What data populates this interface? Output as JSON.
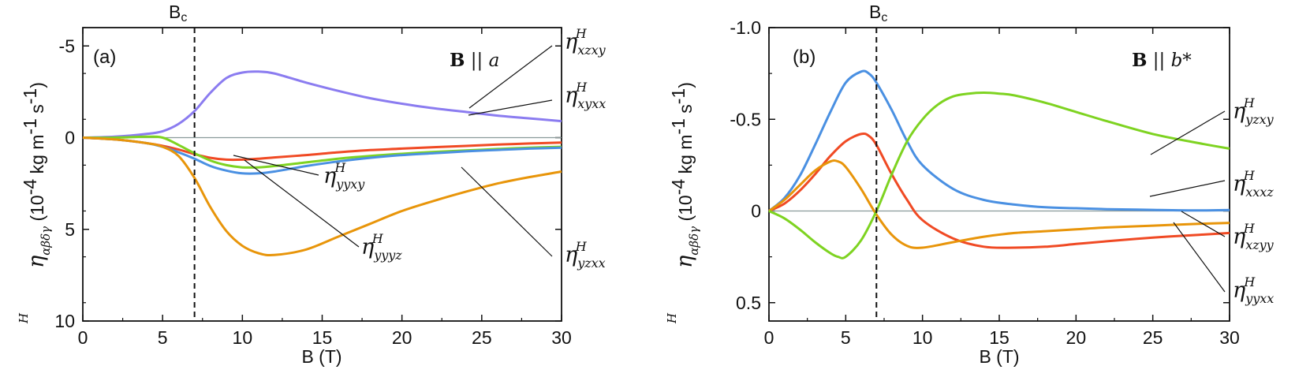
{
  "chart_data": [
    {
      "type": "line",
      "panel_label": "(a)",
      "field_label": {
        "bold": "B",
        "rest": " || ",
        "italic": "a"
      },
      "xlabel": "B (T)",
      "ylabel": {
        "sub": "αβδγ",
        "tail": "(10",
        "exp": "-4",
        "unit": " kg m",
        "exp2": "-1",
        "unit2": " s",
        "exp3": "-1",
        "close": ")"
      },
      "xlim": [
        0,
        30
      ],
      "ylim": [
        10,
        -6
      ],
      "xticks": [
        0,
        5,
        10,
        15,
        20,
        25,
        30
      ],
      "yticks": [
        10,
        5,
        0,
        -5
      ],
      "ytick_labels": [
        "10",
        "5",
        "0",
        "-5"
      ],
      "critical_field": {
        "x": 7,
        "label": "B",
        "sub": "c"
      },
      "series": [
        {
          "name": "xzxy",
          "color": "#8b7cf0",
          "x": [
            0,
            2,
            4,
            5,
            6,
            7,
            8,
            9,
            10,
            11,
            12,
            14,
            16,
            18,
            20,
            22,
            24,
            26,
            28,
            30
          ],
          "y": [
            0,
            -0.05,
            -0.2,
            -0.35,
            -0.75,
            -1.45,
            -2.45,
            -3.25,
            -3.55,
            -3.6,
            -3.5,
            -3.0,
            -2.55,
            -2.15,
            -1.85,
            -1.6,
            -1.4,
            -1.2,
            -1.05,
            -0.9
          ]
        },
        {
          "name": "xyxx",
          "color": "#f04a24",
          "x": [
            0,
            2,
            4,
            5,
            6,
            7,
            8,
            9,
            10,
            11,
            12,
            14,
            16,
            18,
            20,
            22,
            24,
            26,
            28,
            30
          ],
          "y": [
            0,
            0.1,
            0.3,
            0.45,
            0.65,
            0.9,
            1.1,
            1.2,
            1.2,
            1.15,
            1.08,
            0.95,
            0.8,
            0.68,
            0.6,
            0.52,
            0.45,
            0.38,
            0.32,
            0.27
          ]
        },
        {
          "name": "yyxy",
          "color": "#7ed321",
          "x": [
            0,
            2,
            4,
            5,
            6,
            7,
            8,
            9,
            10,
            11,
            12,
            14,
            16,
            18,
            20,
            22,
            24,
            26,
            28,
            30
          ],
          "y": [
            0,
            0.0,
            -0.05,
            0.0,
            0.4,
            0.85,
            1.25,
            1.5,
            1.62,
            1.62,
            1.55,
            1.35,
            1.15,
            1.0,
            0.88,
            0.78,
            0.7,
            0.62,
            0.55,
            0.5
          ]
        },
        {
          "name": "yzxx",
          "color": "#4a90e2",
          "x": [
            0,
            2,
            4,
            5,
            6,
            7,
            8,
            9,
            10,
            11,
            12,
            14,
            16,
            18,
            20,
            22,
            24,
            26,
            28,
            30
          ],
          "y": [
            0,
            0.1,
            0.3,
            0.5,
            0.8,
            1.15,
            1.55,
            1.8,
            1.95,
            1.95,
            1.85,
            1.55,
            1.3,
            1.1,
            0.95,
            0.85,
            0.75,
            0.67,
            0.6,
            0.55
          ]
        },
        {
          "name": "yyyz",
          "color": "#e8950a",
          "x": [
            0,
            2,
            4,
            5,
            6,
            7,
            8,
            9,
            10,
            11,
            12,
            14,
            16,
            18,
            20,
            22,
            24,
            26,
            28,
            30
          ],
          "y": [
            0,
            0.1,
            0.3,
            0.5,
            1.0,
            2.2,
            3.8,
            5.1,
            5.9,
            6.3,
            6.4,
            6.1,
            5.4,
            4.7,
            4.0,
            3.45,
            2.95,
            2.5,
            2.15,
            1.85
          ]
        }
      ],
      "labels": [
        {
          "text": "η",
          "sub": "xzxy",
          "sup": "H"
        },
        {
          "text": "η",
          "sub": "xyxx",
          "sup": "H"
        },
        {
          "text": "η",
          "sub": "yyxy",
          "sup": "H"
        },
        {
          "text": "η",
          "sub": "yyyz",
          "sup": "H"
        },
        {
          "text": "η",
          "sub": "yzxx",
          "sup": "H"
        }
      ]
    },
    {
      "type": "line",
      "panel_label": "(b)",
      "field_label": {
        "bold": "B",
        "rest": " || ",
        "italic": "b*"
      },
      "xlabel": "B (T)",
      "ylabel": {
        "sub": "αβδγ",
        "tail": "(10",
        "exp": "-4",
        "unit": " kg m",
        "exp2": "-1",
        "unit2": " s",
        "exp3": "-1",
        "close": ")"
      },
      "xlim": [
        0,
        30
      ],
      "ylim": [
        0.6,
        -1.0
      ],
      "xticks": [
        0,
        5,
        10,
        15,
        20,
        25,
        30
      ],
      "yticks": [
        0.5,
        0,
        -0.5,
        -1.0
      ],
      "ytick_labels": [
        "0.5",
        "0",
        "-0.5",
        "-1.0"
      ],
      "critical_field": {
        "x": 7,
        "label": "B",
        "sub": "c"
      },
      "series": [
        {
          "name": "xxxz",
          "color": "#4a90e2",
          "x": [
            0,
            1,
            2,
            3,
            4,
            5,
            6,
            6.5,
            7,
            8,
            9,
            10,
            12,
            14,
            16,
            18,
            20,
            22,
            25,
            28,
            30
          ],
          "y": [
            0,
            -0.07,
            -0.19,
            -0.36,
            -0.54,
            -0.7,
            -0.76,
            -0.75,
            -0.7,
            -0.55,
            -0.38,
            -0.25,
            -0.12,
            -0.06,
            -0.035,
            -0.02,
            -0.015,
            -0.01,
            -0.006,
            -0.003,
            -0.005
          ]
        },
        {
          "name": "yyxx",
          "color": "#f04a24",
          "x": [
            0,
            1,
            2,
            3,
            4,
            5,
            6,
            6.5,
            7,
            8,
            9,
            10,
            12,
            14,
            16,
            18,
            20,
            22,
            25,
            28,
            30
          ],
          "y": [
            0,
            -0.04,
            -0.11,
            -0.2,
            -0.3,
            -0.38,
            -0.42,
            -0.41,
            -0.36,
            -0.2,
            -0.06,
            0.05,
            0.15,
            0.195,
            0.2,
            0.195,
            0.18,
            0.165,
            0.145,
            0.13,
            0.12
          ]
        },
        {
          "name": "xzyy",
          "color": "#e8950a",
          "x": [
            0,
            1,
            2,
            3,
            4,
            4.5,
            5,
            6,
            7,
            8,
            9,
            10,
            12,
            14,
            16,
            18,
            20,
            22,
            25,
            28,
            30
          ],
          "y": [
            0,
            -0.06,
            -0.14,
            -0.22,
            -0.27,
            -0.27,
            -0.24,
            -0.12,
            0.02,
            0.13,
            0.19,
            0.2,
            0.17,
            0.14,
            0.12,
            0.11,
            0.1,
            0.09,
            0.08,
            0.07,
            0.065
          ]
        },
        {
          "name": "yzxy",
          "color": "#7ed321",
          "x": [
            0,
            1,
            2,
            3,
            4,
            4.5,
            5,
            6,
            7,
            8,
            9,
            10,
            11,
            12,
            13,
            14,
            15,
            16,
            18,
            20,
            22,
            25,
            28,
            30
          ],
          "y": [
            0,
            0.04,
            0.1,
            0.17,
            0.23,
            0.25,
            0.25,
            0.16,
            0.0,
            -0.2,
            -0.38,
            -0.5,
            -0.58,
            -0.625,
            -0.64,
            -0.645,
            -0.64,
            -0.63,
            -0.59,
            -0.54,
            -0.49,
            -0.42,
            -0.37,
            -0.34
          ]
        }
      ],
      "labels": [
        {
          "text": "η",
          "sub": "yzxy",
          "sup": "H"
        },
        {
          "text": "η",
          "sub": "xxxz",
          "sup": "H"
        },
        {
          "text": "η",
          "sub": "xzyy",
          "sup": "H"
        },
        {
          "text": "η",
          "sub": "yyxx",
          "sup": "H"
        }
      ]
    }
  ]
}
